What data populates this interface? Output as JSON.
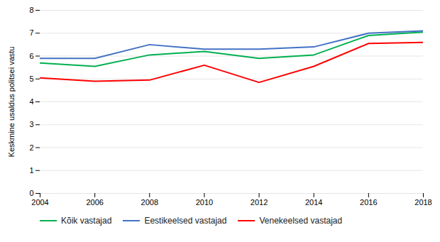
{
  "chart_data": {
    "type": "line",
    "x": [
      2004,
      2006,
      2008,
      2010,
      2012,
      2014,
      2016,
      2018
    ],
    "series": [
      {
        "name": "Kõik vastajad",
        "color": "#00B050",
        "values": [
          5.7,
          5.55,
          6.05,
          6.2,
          5.9,
          6.05,
          6.9,
          7.05
        ]
      },
      {
        "name": "Eestikeelsed vastajad",
        "color": "#4472C4",
        "values": [
          5.9,
          5.9,
          6.5,
          6.3,
          6.3,
          6.4,
          7.0,
          7.1
        ]
      },
      {
        "name": "Venekeelsed vastajad",
        "color": "#FF0000",
        "values": [
          5.05,
          4.9,
          4.95,
          5.6,
          4.85,
          5.55,
          6.55,
          6.6
        ]
      }
    ],
    "ylabel": "Keskmine usaldus politsei vastu",
    "xlim": [
      2004,
      2018
    ],
    "xticks": [
      2004,
      2006,
      2008,
      2010,
      2012,
      2014,
      2016,
      2018
    ],
    "ylim": [
      0,
      8
    ],
    "yticks": [
      0,
      1,
      2,
      3,
      4,
      5,
      6,
      7,
      8
    ],
    "grid": true,
    "legend": "bottom"
  }
}
